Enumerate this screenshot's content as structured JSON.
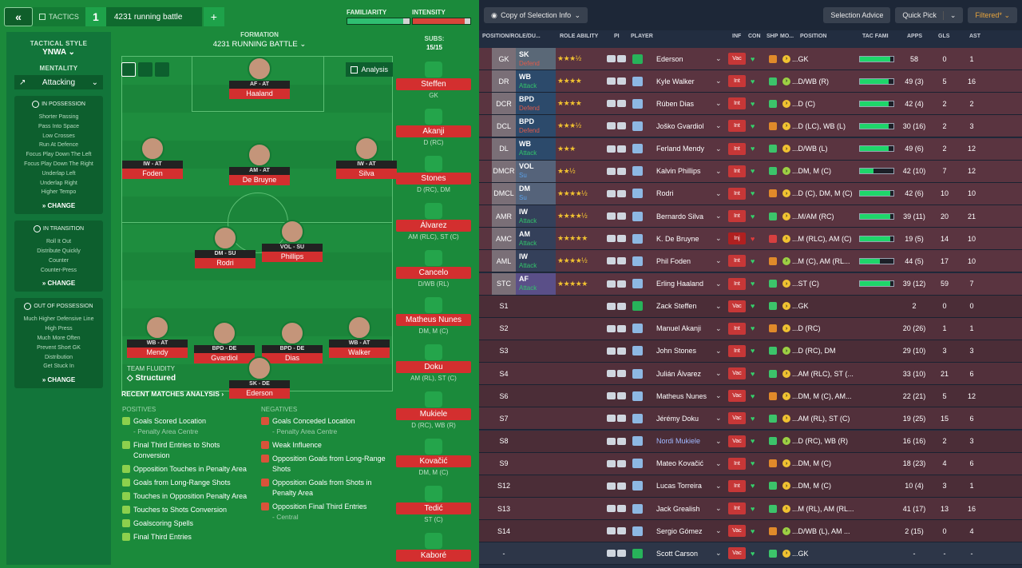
{
  "topbar": {
    "back_icon": "double-chevron-left",
    "tactics_label": "TACTICS",
    "tactic_number": "1",
    "tactic_name": "4231 running battle",
    "add_label": "+",
    "familiarity_label": "FAMILIARITY",
    "intensity_label": "INTENSITY",
    "familiarity": 0.9,
    "intensity": 0.9
  },
  "leftpanel": {
    "tactical_style_label": "TACTICAL STYLE",
    "tactical_style": "YNWA",
    "mentality_label": "MENTALITY",
    "mentality": "Attacking",
    "in_possession": {
      "title": "IN POSSESSION",
      "items": [
        "Shorter Passing",
        "Pass Into Space",
        "Low Crosses",
        "Run At Defence",
        "Focus Play Down The Left",
        "Focus Play Down The Right",
        "Underlap Left",
        "Underlap Right",
        "Higher Tempo"
      ],
      "change": "CHANGE"
    },
    "in_transition": {
      "title": "IN TRANSITION",
      "items": [
        "Roll It Out",
        "Distribute Quickly",
        "Counter",
        "Counter-Press"
      ],
      "change": "CHANGE"
    },
    "out_of_possession": {
      "title": "OUT OF POSSESSION",
      "items": [
        "Much Higher Defensive Line",
        "High Press",
        "Much More Often",
        "Prevent Short GK",
        "Distribution",
        "Get Stuck In"
      ],
      "change": "CHANGE"
    }
  },
  "formation": {
    "label": "FORMATION",
    "name": "4231 RUNNING BATTLE",
    "analysis_label": "Analysis",
    "team_fluidity_label": "TEAM FLUIDITY",
    "team_fluidity": "Structured"
  },
  "players": [
    {
      "role": "AF - AT",
      "name": "Haaland"
    },
    {
      "role": "IW - AT",
      "name": "Foden"
    },
    {
      "role": "AM - AT",
      "name": "De Bruyne"
    },
    {
      "role": "IW - AT",
      "name": "Silva"
    },
    {
      "role": "DM - SU",
      "name": "Rodri"
    },
    {
      "role": "VOL - SU",
      "name": "Phillips"
    },
    {
      "role": "WB - AT",
      "name": "Mendy"
    },
    {
      "role": "BPD - DE",
      "name": "Gvardiol"
    },
    {
      "role": "BPD - DE",
      "name": "Dias"
    },
    {
      "role": "WB - AT",
      "name": "Walker"
    },
    {
      "role": "SK - DE",
      "name": "Ederson"
    }
  ],
  "subs": {
    "label": "SUBS:",
    "count": "15/15",
    "list": [
      {
        "name": "Steffen",
        "pos": "GK"
      },
      {
        "name": "Akanji",
        "pos": "D (RC)"
      },
      {
        "name": "Stones",
        "pos": "D (RC), DM"
      },
      {
        "name": "Álvarez",
        "pos": "AM (RLC), ST (C)"
      },
      {
        "name": "Cancelo",
        "pos": "D/WB (RL)"
      },
      {
        "name": "Matheus Nunes",
        "pos": "DM, M (C)"
      },
      {
        "name": "Doku",
        "pos": "AM (RL), ST (C)"
      },
      {
        "name": "Mukiele",
        "pos": "D (RC), WB (R)"
      },
      {
        "name": "Kovačić",
        "pos": "DM, M (C)"
      },
      {
        "name": "Tedić",
        "pos": "ST (C)"
      },
      {
        "name": "Kaboré",
        "pos": ""
      }
    ]
  },
  "analysis": {
    "title": "RECENT MATCHES ANALYSIS",
    "positives_label": "POSITIVES",
    "negatives_label": "NEGATIVES",
    "positives": [
      {
        "text": "Goals Scored Location",
        "sub": "- Penalty Area Centre"
      },
      {
        "text": "Final Third Entries to Shots Conversion",
        "sub": ""
      },
      {
        "text": "Opposition Touches in Penalty Area",
        "sub": ""
      },
      {
        "text": "Goals from Long-Range Shots",
        "sub": ""
      },
      {
        "text": "Touches in Opposition Penalty Area",
        "sub": ""
      },
      {
        "text": "Touches to Shots Conversion",
        "sub": ""
      },
      {
        "text": "Goalscoring Spells",
        "sub": ""
      },
      {
        "text": "Final Third Entries",
        "sub": ""
      }
    ],
    "negatives": [
      {
        "text": "Goals Conceded Location",
        "sub": "- Penalty Area Centre"
      },
      {
        "text": "Weak Influence",
        "sub": ""
      },
      {
        "text": "Opposition Goals from Long-Range Shots",
        "sub": ""
      },
      {
        "text": "Opposition Goals from Shots in Penalty Area",
        "sub": ""
      },
      {
        "text": "Opposition Final Third Entries",
        "sub": "- Central"
      }
    ]
  },
  "right_toolbar": {
    "view_label": "Copy of Selection Info",
    "selection_advice": "Selection Advice",
    "quick_pick": "Quick Pick",
    "filtered": "Filtered*"
  },
  "table_headers": [
    "POSITION/ROLE/DU...",
    "ROLE ABILITY",
    "PI",
    "PLAYER",
    "INF",
    "CON",
    "SHP",
    "MO...",
    "POSITION",
    "TAC FAMI",
    "APPS",
    "GLS",
    "AST"
  ],
  "rows": [
    {
      "pos": "GK",
      "role": "SK",
      "duty": "Defend",
      "stars": "★★★½",
      "player": "Ederson",
      "inf": "Vac",
      "position": "...GK",
      "fam": 0.9,
      "apps": "58",
      "gls": "0",
      "ast": "1"
    },
    {
      "pos": "DR",
      "role": "WB",
      "duty": "Attack",
      "stars": "★★★★",
      "player": "Kyle Walker",
      "inf": "Int",
      "position": "...D/WB (R)",
      "fam": 0.85,
      "apps": "49 (3)",
      "gls": "5",
      "ast": "16"
    },
    {
      "pos": "DCR",
      "role": "BPD",
      "duty": "Defend",
      "stars": "★★★★",
      "player": "Rúben Dias",
      "inf": "Int",
      "position": "...D (C)",
      "fam": 0.85,
      "apps": "42 (4)",
      "gls": "2",
      "ast": "2"
    },
    {
      "pos": "DCL",
      "role": "BPD",
      "duty": "Defend",
      "stars": "★★★½",
      "player": "Joško Gvardiol",
      "inf": "Int",
      "position": "...D (LC), WB (L)",
      "fam": 0.85,
      "apps": "30 (16)",
      "gls": "2",
      "ast": "3"
    },
    {
      "pos": "DL",
      "role": "WB",
      "duty": "Attack",
      "stars": "★★★",
      "player": "Ferland Mendy",
      "inf": "Int",
      "position": "...D/WB (L)",
      "fam": 0.85,
      "apps": "49 (6)",
      "gls": "2",
      "ast": "12"
    },
    {
      "pos": "DMCR",
      "role": "VOL",
      "duty": "Su",
      "stars": "★★½",
      "player": "Kalvin Phillips",
      "inf": "Int",
      "position": "...DM, M (C)",
      "fam": 0.4,
      "apps": "42 (10)",
      "gls": "7",
      "ast": "12"
    },
    {
      "pos": "DMCL",
      "role": "DM",
      "duty": "Su",
      "stars": "★★★★½",
      "player": "Rodri",
      "inf": "Int",
      "position": "...D (C), DM, M (C)",
      "fam": 0.9,
      "apps": "42 (6)",
      "gls": "10",
      "ast": "10"
    },
    {
      "pos": "AMR",
      "role": "IW",
      "duty": "Attack",
      "stars": "★★★★½",
      "player": "Bernardo Silva",
      "inf": "Int",
      "position": "...M/AM (RC)",
      "fam": 0.9,
      "apps": "39 (11)",
      "gls": "20",
      "ast": "21"
    },
    {
      "pos": "AMC",
      "role": "AM",
      "duty": "Attack",
      "stars": "★★★★★",
      "player": "K. De Bruyne",
      "inf": "Inj",
      "position": "...M (RLC), AM (C)",
      "fam": 0.9,
      "apps": "19 (5)",
      "gls": "14",
      "ast": "10"
    },
    {
      "pos": "AML",
      "role": "IW",
      "duty": "Attack",
      "stars": "★★★★½",
      "player": "Phil Foden",
      "inf": "Int",
      "position": "...M (C), AM (RL...",
      "fam": 0.6,
      "apps": "44 (5)",
      "gls": "17",
      "ast": "10"
    },
    {
      "pos": "STC",
      "role": "AF",
      "duty": "Attack",
      "stars": "★★★★★",
      "player": "Erling Haaland",
      "inf": "Int",
      "position": "...ST (C)",
      "fam": 0.9,
      "apps": "39 (12)",
      "gls": "59",
      "ast": "7"
    },
    {
      "pos": "S1",
      "role": "",
      "duty": "",
      "stars": "",
      "player": "Zack Steffen",
      "inf": "Vac",
      "position": "...GK",
      "fam": null,
      "apps": "2",
      "gls": "0",
      "ast": "0"
    },
    {
      "pos": "S2",
      "role": "",
      "duty": "",
      "stars": "",
      "player": "Manuel Akanji",
      "inf": "Int",
      "position": "...D (RC)",
      "fam": null,
      "apps": "20 (26)",
      "gls": "1",
      "ast": "1"
    },
    {
      "pos": "S3",
      "role": "",
      "duty": "",
      "stars": "",
      "player": "John Stones",
      "inf": "Int",
      "position": "...D (RC), DM",
      "fam": null,
      "apps": "29 (10)",
      "gls": "3",
      "ast": "3"
    },
    {
      "pos": "S4",
      "role": "",
      "duty": "",
      "stars": "",
      "player": "Julián Álvarez",
      "inf": "Vac",
      "position": "...AM (RLC), ST (...",
      "fam": null,
      "apps": "33 (10)",
      "gls": "21",
      "ast": "6"
    },
    {
      "pos": "S6",
      "role": "",
      "duty": "",
      "stars": "",
      "player": "Matheus Nunes",
      "inf": "Vac",
      "position": "...DM, M (C), AM...",
      "fam": null,
      "apps": "22 (21)",
      "gls": "5",
      "ast": "12"
    },
    {
      "pos": "S7",
      "role": "",
      "duty": "",
      "stars": "",
      "player": "Jérémy Doku",
      "inf": "Vac",
      "position": "...AM (RL), ST (C)",
      "fam": null,
      "apps": "19 (25)",
      "gls": "15",
      "ast": "6"
    },
    {
      "pos": "S8",
      "role": "",
      "duty": "",
      "stars": "",
      "player": "Nordi Mukiele",
      "inf": "Vac",
      "position": "...D (RC), WB (R)",
      "fam": null,
      "apps": "16 (16)",
      "gls": "2",
      "ast": "3"
    },
    {
      "pos": "S9",
      "role": "",
      "duty": "",
      "stars": "",
      "player": "Mateo Kovačić",
      "inf": "Int",
      "position": "...DM, M (C)",
      "fam": null,
      "apps": "18 (23)",
      "gls": "4",
      "ast": "6"
    },
    {
      "pos": "S12",
      "role": "",
      "duty": "",
      "stars": "",
      "player": "Lucas Torreira",
      "inf": "Int",
      "position": "...DM, M (C)",
      "fam": null,
      "apps": "10 (4)",
      "gls": "3",
      "ast": "1"
    },
    {
      "pos": "S13",
      "role": "",
      "duty": "",
      "stars": "",
      "player": "Jack Grealish",
      "inf": "Int",
      "position": "...M (RL), AM (RL...",
      "fam": null,
      "apps": "41 (17)",
      "gls": "13",
      "ast": "16"
    },
    {
      "pos": "S14",
      "role": "",
      "duty": "",
      "stars": "",
      "player": "Sergio Gómez",
      "inf": "Vac",
      "position": "...D/WB (L), AM ...",
      "fam": null,
      "apps": "2 (15)",
      "gls": "0",
      "ast": "4"
    },
    {
      "pos": "-",
      "role": "",
      "duty": "",
      "stars": "",
      "player": "Scott Carson",
      "inf": "Vac",
      "position": "...GK",
      "fam": null,
      "apps": "-",
      "gls": "-",
      "ast": "-"
    }
  ]
}
